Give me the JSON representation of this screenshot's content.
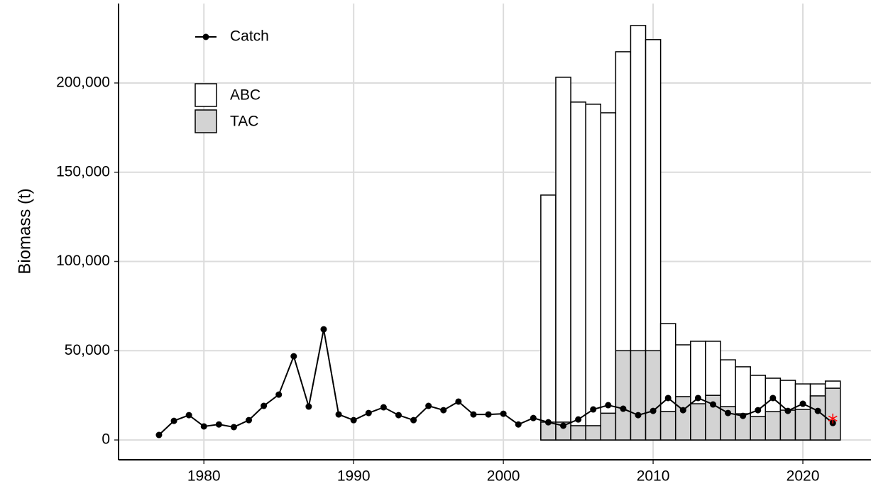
{
  "chart_data": {
    "type": "bar_line",
    "y_label": "Biomass (t)",
    "x": [
      1977,
      1978,
      1979,
      1980,
      1981,
      1982,
      1983,
      1984,
      1985,
      1986,
      1987,
      1988,
      1989,
      1990,
      1991,
      1992,
      1993,
      1994,
      1995,
      1996,
      1997,
      1998,
      1999,
      2000,
      2001,
      2002,
      2003,
      2004,
      2005,
      2006,
      2007,
      2008,
      2009,
      2010,
      2011,
      2012,
      2013,
      2014,
      2015,
      2016,
      2017,
      2018,
      2019,
      2020,
      2021,
      2022
    ],
    "series": [
      {
        "name": "Catch",
        "kind": "line",
        "color": "#000000",
        "values": [
          2800,
          10700,
          13900,
          7600,
          8700,
          7200,
          11100,
          19100,
          25400,
          46900,
          18700,
          62000,
          14300,
          11100,
          15100,
          18300,
          13900,
          11100,
          19100,
          16700,
          21500,
          14300,
          14300,
          14700,
          8700,
          12300,
          9900,
          8000,
          11500,
          17100,
          19500,
          17500,
          13900,
          16300,
          23500,
          16700,
          23500,
          19900,
          15100,
          13500,
          16700,
          23500,
          16300,
          20300,
          16300,
          9500
        ]
      },
      {
        "name": "ABC",
        "kind": "bar",
        "color": "#ffffff",
        "values": [
          null,
          null,
          null,
          null,
          null,
          null,
          null,
          null,
          null,
          null,
          null,
          null,
          null,
          null,
          null,
          null,
          null,
          null,
          null,
          null,
          null,
          null,
          null,
          null,
          null,
          null,
          137200,
          203200,
          189300,
          188100,
          183300,
          217500,
          232200,
          224300,
          65200,
          53300,
          55300,
          55300,
          44900,
          41000,
          36200,
          34600,
          33400,
          31400,
          31400,
          33000
        ]
      },
      {
        "name": "TAC",
        "kind": "bar",
        "color": "#d3d3d3",
        "values": [
          null,
          null,
          null,
          null,
          null,
          null,
          null,
          null,
          null,
          null,
          null,
          null,
          null,
          null,
          null,
          null,
          null,
          null,
          null,
          null,
          null,
          null,
          null,
          null,
          null,
          null,
          10000,
          10000,
          8000,
          8000,
          15000,
          50000,
          50000,
          50000,
          16000,
          24300,
          20300,
          25000,
          18700,
          14700,
          13100,
          15900,
          16700,
          17100,
          24700,
          29000
        ]
      }
    ],
    "projected": {
      "x": 2022,
      "value": 12000,
      "color": "#ff0000"
    },
    "xlim": [
      1974.3,
      2024.55
    ],
    "xticks": [
      1980,
      1990,
      2000,
      2010,
      2020
    ],
    "ylim": [
      -11100,
      244500
    ],
    "yticks": [
      0,
      {
        "value": 50000,
        "label": "50,000"
      },
      {
        "value": 100000,
        "label": "100,000"
      },
      {
        "value": 150000,
        "label": "150,000"
      },
      {
        "value": 200000,
        "label": "200,000"
      }
    ],
    "grid": true,
    "legend": "top-left"
  }
}
